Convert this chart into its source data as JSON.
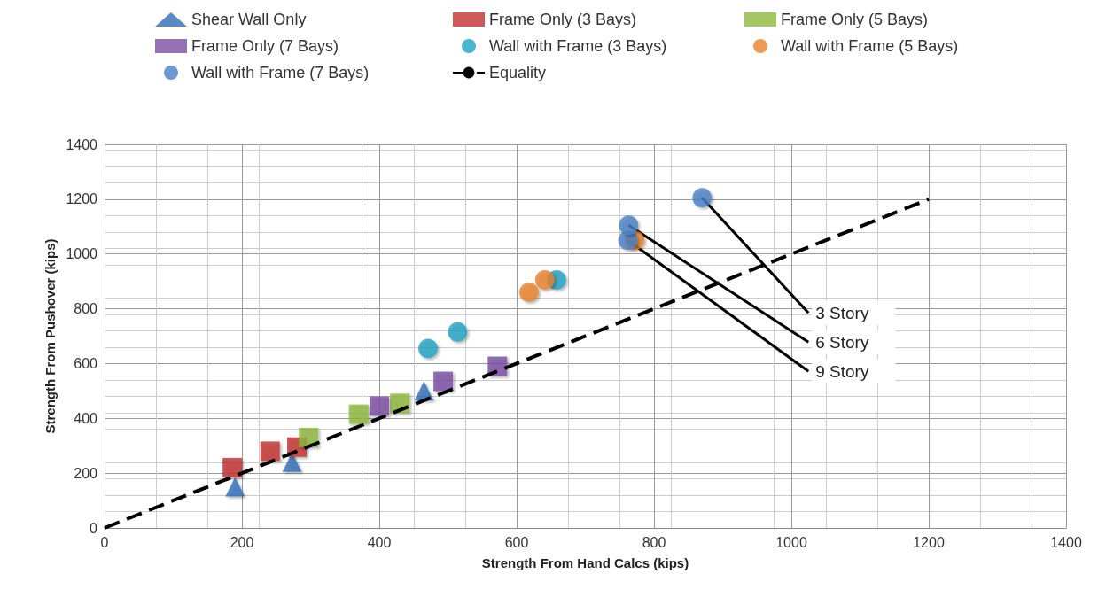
{
  "chart_data": {
    "type": "scatter",
    "xlabel": "Strength From Hand Calcs (kips)",
    "ylabel": "Strength From Pushover (kips)",
    "xlim": [
      0,
      1400
    ],
    "xticks": [
      0,
      200,
      400,
      600,
      800,
      1000,
      1200,
      1400
    ],
    "ylim": [
      0,
      1400
    ],
    "yticks": [
      0,
      200,
      400,
      600,
      800,
      1000,
      1200,
      1400
    ],
    "grid": true,
    "legend": "top",
    "series": [
      {
        "name": "Shear Wall Only",
        "color": "#2f6db5",
        "marker": "triangle",
        "x": [
          190,
          273,
          465
        ],
        "values": [
          150,
          240,
          500
        ]
      },
      {
        "name": "Frame Only (3 Bays)",
        "color": "#c3302f",
        "marker": "square",
        "x": [
          186,
          241,
          280
        ],
        "values": [
          220,
          280,
          295
        ]
      },
      {
        "name": "Frame Only (5 Bays)",
        "color": "#8db83c",
        "marker": "square",
        "x": [
          297,
          370,
          430
        ],
        "values": [
          330,
          415,
          455
        ]
      },
      {
        "name": "Frame Only (7 Bays)",
        "color": "#7a4ea3",
        "marker": "square",
        "x": [
          400,
          493,
          572
        ],
        "values": [
          445,
          535,
          590
        ]
      },
      {
        "name": "Wall with Frame (3 Bays)",
        "color": "#1fa2c2",
        "marker": "circle",
        "x": [
          471,
          514,
          658
        ],
        "values": [
          655,
          715,
          905
        ]
      },
      {
        "name": "Wall with Frame (5 Bays)",
        "color": "#e8812a",
        "marker": "circle",
        "x": [
          618,
          641,
          772
        ],
        "values": [
          860,
          905,
          1050
        ]
      },
      {
        "name": "Wall with Frame (7 Bays)",
        "color": "#4a7fc4",
        "marker": "circle",
        "x": [
          762,
          763,
          870
        ],
        "values": [
          1050,
          1105,
          1205
        ]
      },
      {
        "name": "Equality",
        "type": "line",
        "color": "#000000",
        "marker": "none",
        "line_style": "dashed",
        "x": [
          0,
          1200
        ],
        "values": [
          0,
          1200
        ]
      }
    ],
    "annotations": [
      {
        "text": "3 Story",
        "x": 870,
        "y": 1205
      },
      {
        "text": "6 Story",
        "x": 763,
        "y": 1105
      },
      {
        "text": "9 Story",
        "x": 762,
        "y": 1050
      }
    ]
  }
}
